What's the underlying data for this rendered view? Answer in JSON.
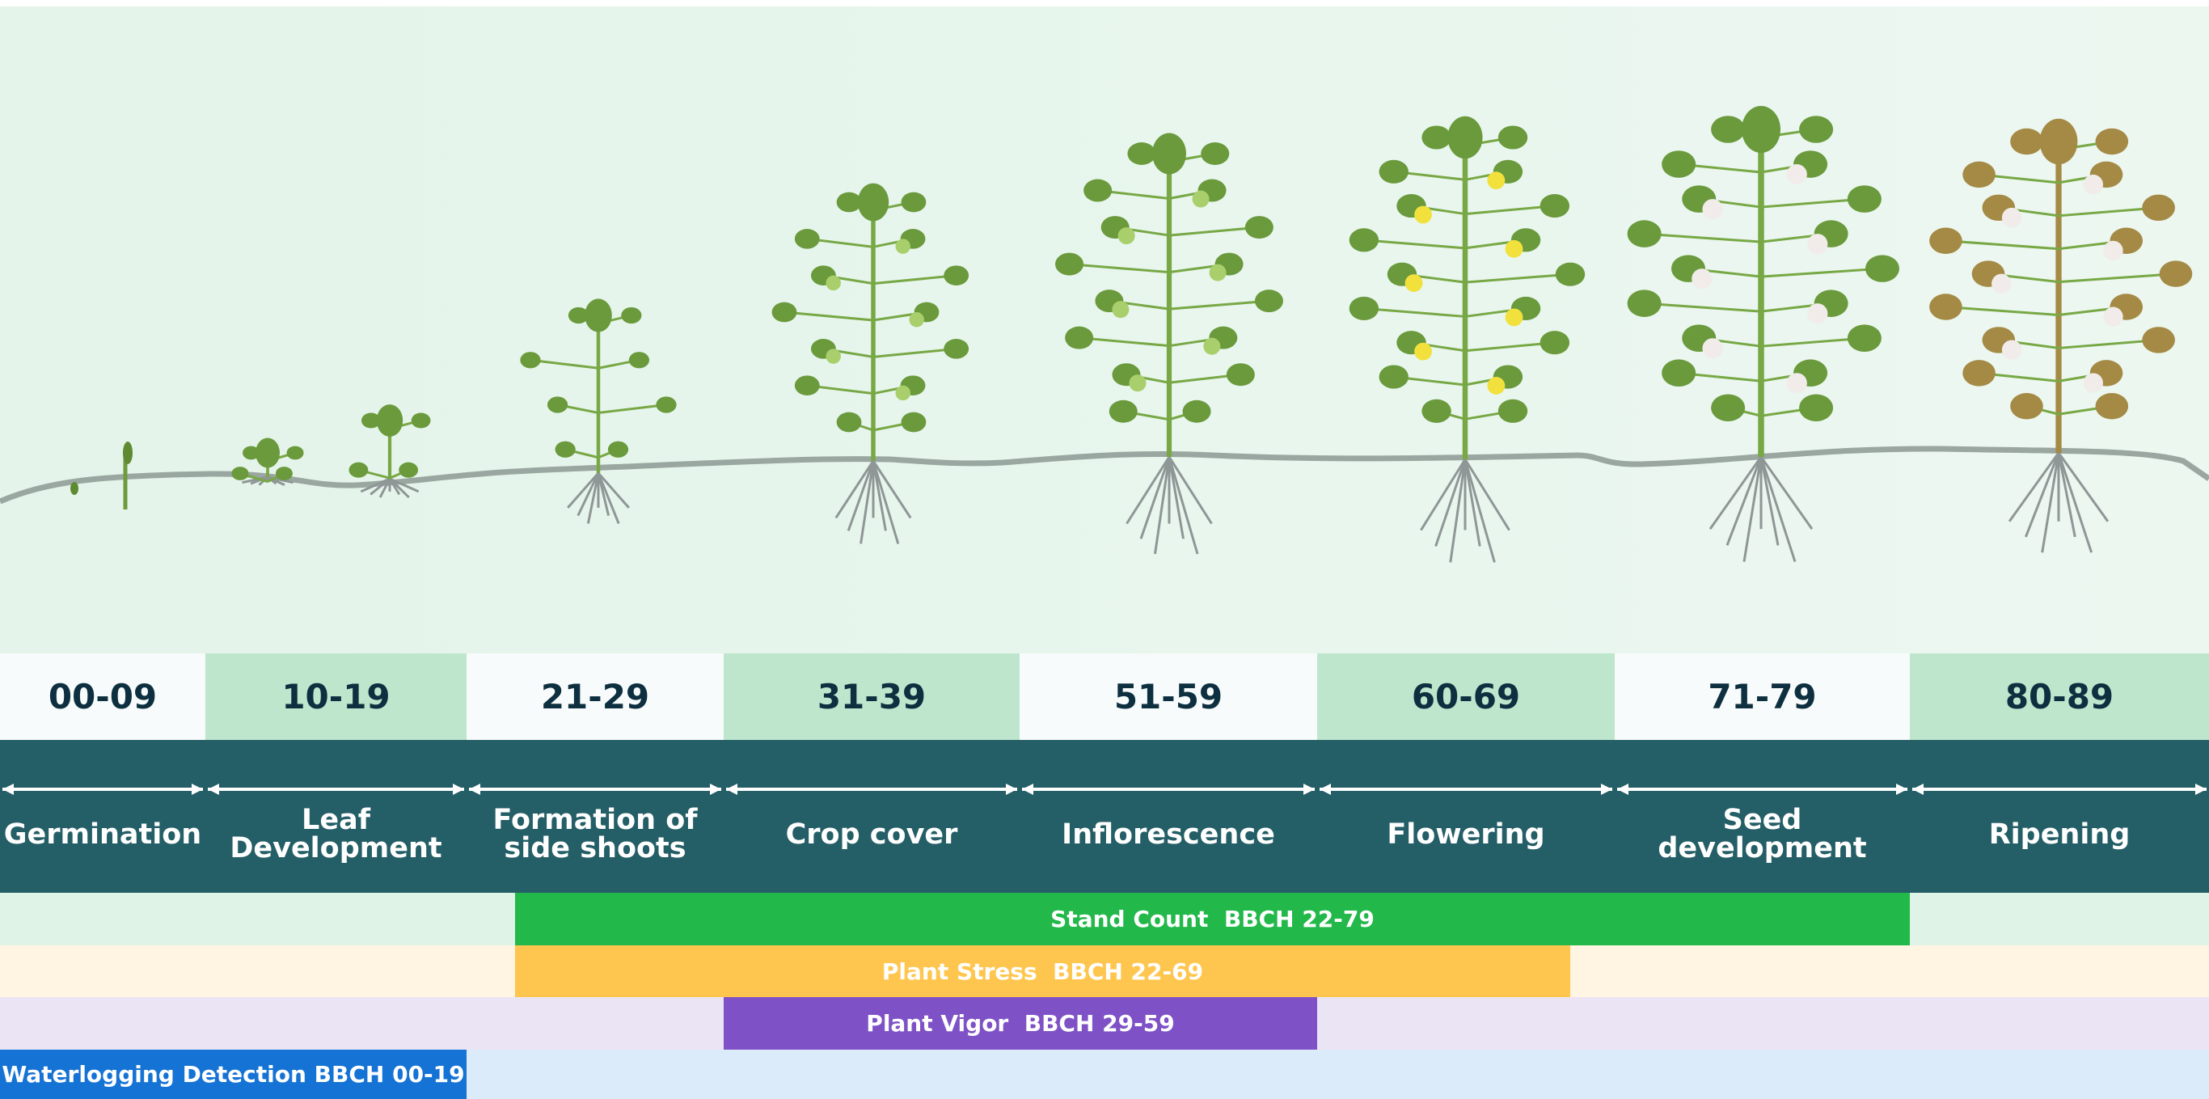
{
  "stages": [
    {
      "code": "00-09",
      "name": "Germination"
    },
    {
      "code": "10-19",
      "name": "Leaf Development"
    },
    {
      "code": "21-29",
      "name": "Formation of side shoots"
    },
    {
      "code": "31-39",
      "name": "Crop cover"
    },
    {
      "code": "51-59",
      "name": "Inflorescence"
    },
    {
      "code": "60-69",
      "name": "Flowering"
    },
    {
      "code": "71-79",
      "name": "Seed development"
    },
    {
      "code": "80-89",
      "name": "Ripening"
    }
  ],
  "bars": [
    {
      "label": "Stand Count  BBCH 22-79"
    },
    {
      "label": "Plant Stress  BBCH 22-69"
    },
    {
      "label": "Plant Vigor  BBCH 29-59"
    },
    {
      "label": "Waterlogging Detection BBCH 00-19"
    }
  ]
}
